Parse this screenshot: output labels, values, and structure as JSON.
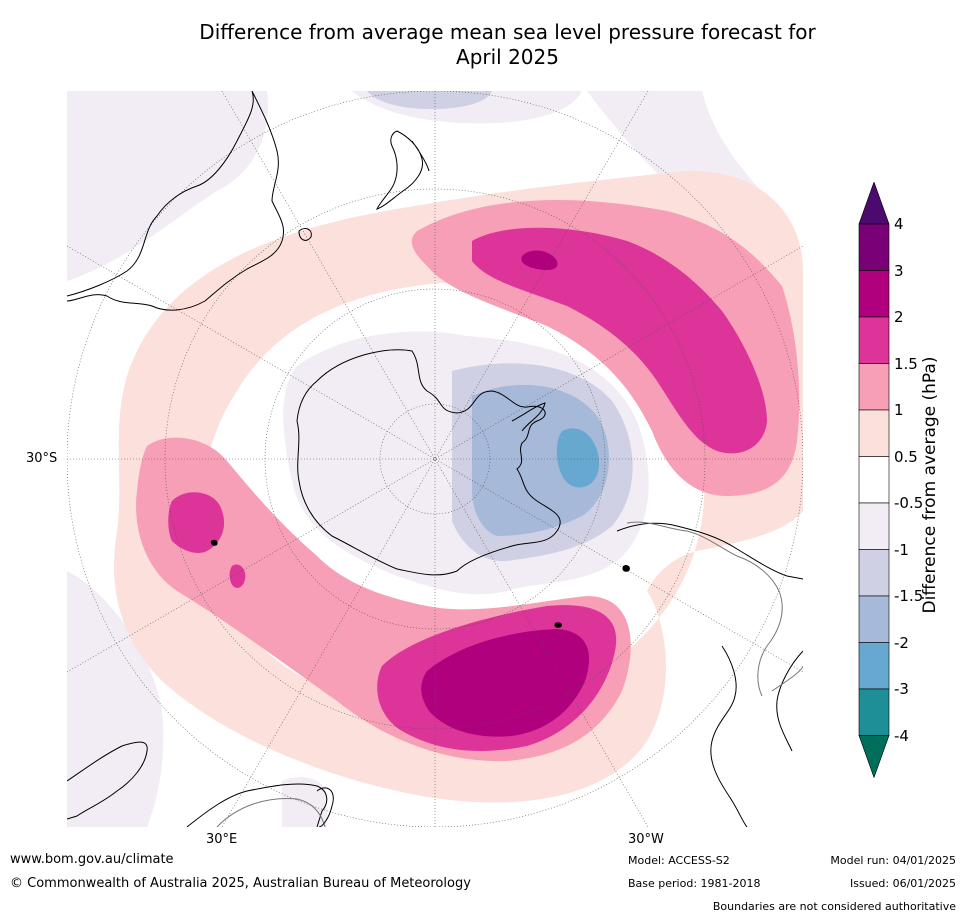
{
  "title_line1": "Difference from average mean sea level pressure forecast for",
  "title_line2": "April 2025",
  "map": {
    "projection": "south-polar-stereographic",
    "labels": {
      "lat": "30°S",
      "lon_east": "30°E",
      "lon_west": "30°W"
    }
  },
  "colorbar": {
    "title": "Difference from average (hPa)",
    "ticks": [
      "4",
      "3",
      "2",
      "1.5",
      "1",
      "0.5",
      "-0.5",
      "-1",
      "-1.5",
      "-2",
      "-3",
      "-4"
    ],
    "levels": [
      {
        "range": ">4",
        "color": "#4b0a6e"
      },
      {
        "range": "3 to 4",
        "color": "#7a0078"
      },
      {
        "range": "2 to 3",
        "color": "#b0007e"
      },
      {
        "range": "1.5 to 2",
        "color": "#dc3498"
      },
      {
        "range": "1 to 1.5",
        "color": "#f79fb6"
      },
      {
        "range": "0.5 to 1",
        "color": "#fce0dc"
      },
      {
        "range": "-0.5 to 0.5",
        "color": "#ffffff"
      },
      {
        "range": "-1 to -0.5",
        "color": "#f2ecf4"
      },
      {
        "range": "-1.5 to -1",
        "color": "#d0d0e4"
      },
      {
        "range": "-2 to -1.5",
        "color": "#a6b9d8"
      },
      {
        "range": "-3 to -2",
        "color": "#66a8cf"
      },
      {
        "range": "-4 to -3",
        "color": "#1e8f96"
      },
      {
        "range": "<-4",
        "color": "#006e5a"
      }
    ]
  },
  "footer": {
    "website": "www.bom.gov.au/climate",
    "copyright": "© Commonwealth of Australia 2025, Australian Bureau of Meteorology",
    "model": "Model: ACCESS-S2",
    "base_period": "Base period: 1981-2018",
    "model_run": "Model run: 04/01/2025",
    "issued": "Issued: 06/01/2025",
    "disclaimer": "Boundaries are not considered authoritative"
  }
}
